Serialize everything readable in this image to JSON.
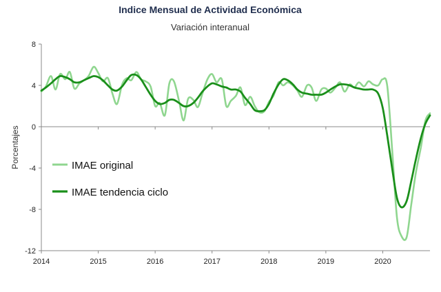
{
  "chart_data": {
    "type": "line",
    "title": "Indice Mensual de  Actividad Económica",
    "subtitle": "Variación interanual",
    "ylabel": "Porcentajes",
    "xlabel": "",
    "xlim": [
      2014,
      2020.83
    ],
    "ylim": [
      -12,
      8
    ],
    "yticks": [
      8,
      4,
      0,
      -4,
      -8,
      -12
    ],
    "xticks": [
      2014,
      2015,
      2016,
      2017,
      2018,
      2019,
      2020
    ],
    "grid": false,
    "legend_placement": "center-left",
    "series": [
      {
        "name": "IMAE original",
        "color": "#8fd68f",
        "points": [
          [
            2014.0,
            3.4
          ],
          [
            2014.08,
            3.9
          ],
          [
            2014.17,
            4.9
          ],
          [
            2014.25,
            3.6
          ],
          [
            2014.33,
            5.1
          ],
          [
            2014.42,
            4.6
          ],
          [
            2014.5,
            5.3
          ],
          [
            2014.58,
            3.7
          ],
          [
            2014.67,
            4.2
          ],
          [
            2014.75,
            4.5
          ],
          [
            2014.83,
            4.9
          ],
          [
            2014.92,
            5.8
          ],
          [
            2015.0,
            5.2
          ],
          [
            2015.08,
            4.4
          ],
          [
            2015.17,
            4.7
          ],
          [
            2015.25,
            3.2
          ],
          [
            2015.33,
            2.2
          ],
          [
            2015.42,
            4.1
          ],
          [
            2015.5,
            4.7
          ],
          [
            2015.58,
            4.5
          ],
          [
            2015.67,
            5.3
          ],
          [
            2015.75,
            4.6
          ],
          [
            2015.83,
            4.4
          ],
          [
            2015.92,
            3.9
          ],
          [
            2016.0,
            2.0
          ],
          [
            2016.08,
            2.3
          ],
          [
            2016.17,
            1.1
          ],
          [
            2016.25,
            4.2
          ],
          [
            2016.33,
            4.4
          ],
          [
            2016.42,
            2.5
          ],
          [
            2016.5,
            0.6
          ],
          [
            2016.58,
            2.7
          ],
          [
            2016.67,
            2.6
          ],
          [
            2016.75,
            1.9
          ],
          [
            2016.83,
            3.2
          ],
          [
            2016.92,
            4.6
          ],
          [
            2017.0,
            5.1
          ],
          [
            2017.08,
            4.3
          ],
          [
            2017.17,
            4.6
          ],
          [
            2017.25,
            2.0
          ],
          [
            2017.33,
            2.5
          ],
          [
            2017.42,
            3.0
          ],
          [
            2017.5,
            3.8
          ],
          [
            2017.58,
            2.1
          ],
          [
            2017.67,
            2.9
          ],
          [
            2017.75,
            2.0
          ],
          [
            2017.83,
            1.4
          ],
          [
            2017.92,
            1.5
          ],
          [
            2018.0,
            2.4
          ],
          [
            2018.08,
            3.0
          ],
          [
            2018.17,
            4.3
          ],
          [
            2018.25,
            4.0
          ],
          [
            2018.33,
            4.3
          ],
          [
            2018.42,
            4.0
          ],
          [
            2018.5,
            3.5
          ],
          [
            2018.58,
            2.9
          ],
          [
            2018.67,
            4.0
          ],
          [
            2018.75,
            3.8
          ],
          [
            2018.83,
            2.5
          ],
          [
            2018.92,
            3.6
          ],
          [
            2019.0,
            3.7
          ],
          [
            2019.08,
            3.3
          ],
          [
            2019.17,
            3.8
          ],
          [
            2019.25,
            4.3
          ],
          [
            2019.33,
            3.4
          ],
          [
            2019.42,
            4.1
          ],
          [
            2019.5,
            3.8
          ],
          [
            2019.58,
            4.3
          ],
          [
            2019.67,
            3.9
          ],
          [
            2019.75,
            4.4
          ],
          [
            2019.83,
            4.1
          ],
          [
            2019.92,
            4.0
          ],
          [
            2020.0,
            4.6
          ],
          [
            2020.08,
            3.9
          ],
          [
            2020.17,
            -2.6
          ],
          [
            2020.25,
            -8.8
          ],
          [
            2020.33,
            -10.6
          ],
          [
            2020.42,
            -10.7
          ],
          [
            2020.5,
            -7.6
          ],
          [
            2020.58,
            -4.5
          ],
          [
            2020.67,
            -2.0
          ],
          [
            2020.75,
            0.6
          ],
          [
            2020.83,
            1.3
          ]
        ]
      },
      {
        "name": "IMAE tendencia ciclo",
        "color": "#1a8f1a",
        "points": [
          [
            2014.0,
            3.5
          ],
          [
            2014.08,
            3.8
          ],
          [
            2014.17,
            4.2
          ],
          [
            2014.25,
            4.6
          ],
          [
            2014.33,
            4.9
          ],
          [
            2014.42,
            4.8
          ],
          [
            2014.5,
            4.6
          ],
          [
            2014.58,
            4.3
          ],
          [
            2014.67,
            4.3
          ],
          [
            2014.75,
            4.5
          ],
          [
            2014.83,
            4.7
          ],
          [
            2014.92,
            4.9
          ],
          [
            2015.0,
            4.8
          ],
          [
            2015.08,
            4.5
          ],
          [
            2015.17,
            4.0
          ],
          [
            2015.25,
            3.6
          ],
          [
            2015.33,
            3.5
          ],
          [
            2015.42,
            3.9
          ],
          [
            2015.5,
            4.5
          ],
          [
            2015.58,
            5.0
          ],
          [
            2015.67,
            5.0
          ],
          [
            2015.75,
            4.6
          ],
          [
            2015.83,
            3.9
          ],
          [
            2015.92,
            3.1
          ],
          [
            2016.0,
            2.5
          ],
          [
            2016.08,
            2.2
          ],
          [
            2016.17,
            2.3
          ],
          [
            2016.25,
            2.6
          ],
          [
            2016.33,
            2.6
          ],
          [
            2016.42,
            2.3
          ],
          [
            2016.5,
            2.0
          ],
          [
            2016.58,
            2.0
          ],
          [
            2016.67,
            2.3
          ],
          [
            2016.75,
            2.8
          ],
          [
            2016.83,
            3.4
          ],
          [
            2016.92,
            3.9
          ],
          [
            2017.0,
            4.2
          ],
          [
            2017.08,
            4.1
          ],
          [
            2017.17,
            3.9
          ],
          [
            2017.25,
            3.8
          ],
          [
            2017.33,
            3.6
          ],
          [
            2017.42,
            3.6
          ],
          [
            2017.5,
            3.4
          ],
          [
            2017.58,
            2.8
          ],
          [
            2017.67,
            2.2
          ],
          [
            2017.75,
            1.6
          ],
          [
            2017.83,
            1.5
          ],
          [
            2017.92,
            1.6
          ],
          [
            2018.0,
            2.2
          ],
          [
            2018.08,
            3.2
          ],
          [
            2018.17,
            4.1
          ],
          [
            2018.25,
            4.6
          ],
          [
            2018.33,
            4.5
          ],
          [
            2018.42,
            4.1
          ],
          [
            2018.5,
            3.6
          ],
          [
            2018.58,
            3.3
          ],
          [
            2018.67,
            3.2
          ],
          [
            2018.75,
            3.1
          ],
          [
            2018.83,
            3.1
          ],
          [
            2018.92,
            3.1
          ],
          [
            2019.0,
            3.3
          ],
          [
            2019.08,
            3.6
          ],
          [
            2019.17,
            3.9
          ],
          [
            2019.25,
            4.1
          ],
          [
            2019.33,
            4.1
          ],
          [
            2019.42,
            4.0
          ],
          [
            2019.5,
            3.8
          ],
          [
            2019.58,
            3.7
          ],
          [
            2019.67,
            3.6
          ],
          [
            2019.75,
            3.6
          ],
          [
            2019.83,
            3.6
          ],
          [
            2019.92,
            3.2
          ],
          [
            2020.0,
            1.8
          ],
          [
            2020.08,
            -0.9
          ],
          [
            2020.17,
            -4.2
          ],
          [
            2020.25,
            -6.9
          ],
          [
            2020.33,
            -7.8
          ],
          [
            2020.42,
            -7.2
          ],
          [
            2020.5,
            -5.3
          ],
          [
            2020.58,
            -3.2
          ],
          [
            2020.67,
            -1.1
          ],
          [
            2020.75,
            0.3
          ],
          [
            2020.83,
            1.1
          ]
        ]
      }
    ]
  }
}
